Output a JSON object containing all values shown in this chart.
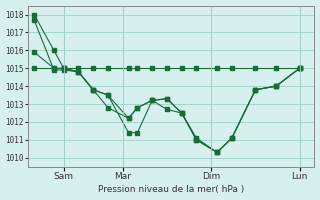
{
  "title": "Pression niveau de la mer( hPa )",
  "bg_color": "#d6f0ee",
  "grid_color": "#a0cfc8",
  "line_color": "#1a6b3a",
  "ylim": [
    1009.5,
    1018.5
  ],
  "yticks": [
    1010,
    1011,
    1012,
    1013,
    1014,
    1015,
    1016,
    1017,
    1018
  ],
  "xtick_positions": [
    1,
    3,
    6,
    9
  ],
  "xtick_labels": [
    "Sam",
    "Mar",
    "Dim",
    "Lun"
  ],
  "series": [
    [
      1018.0,
      1016.0,
      1015.0,
      1014.8,
      1013.8,
      1013.5,
      1011.4,
      1011.4,
      1013.2,
      1013.3,
      1012.5,
      1011.0,
      1010.3,
      1011.1,
      1013.8,
      1014.0,
      1015.0
    ],
    [
      1017.7,
      1014.9,
      1014.9,
      1014.8,
      1013.8,
      1012.8,
      1012.2,
      1012.8,
      1013.2,
      1012.7,
      1012.5,
      1011.0,
      1010.3,
      1011.1,
      1013.8,
      1014.0,
      1015.0
    ],
    [
      1015.0,
      1015.0,
      1015.0,
      1015.0,
      1015.0,
      1015.0,
      1015.0,
      1015.0,
      1015.0,
      1015.0,
      1015.0,
      1015.0,
      1015.0,
      1015.0,
      1015.0,
      1015.0,
      1015.0
    ],
    [
      1015.9,
      1015.0,
      1015.0,
      1014.8,
      1013.8,
      1013.5,
      1012.2,
      1012.8,
      1013.2,
      1013.3,
      1012.5,
      1011.1,
      1010.3,
      1011.1,
      1013.8,
      1014.0,
      1015.0
    ]
  ],
  "x_values": [
    0,
    0.67,
    1.0,
    1.5,
    2.0,
    2.5,
    3.2,
    3.5,
    4.0,
    4.5,
    5.0,
    5.5,
    6.2,
    6.7,
    7.5,
    8.2,
    9.0
  ]
}
